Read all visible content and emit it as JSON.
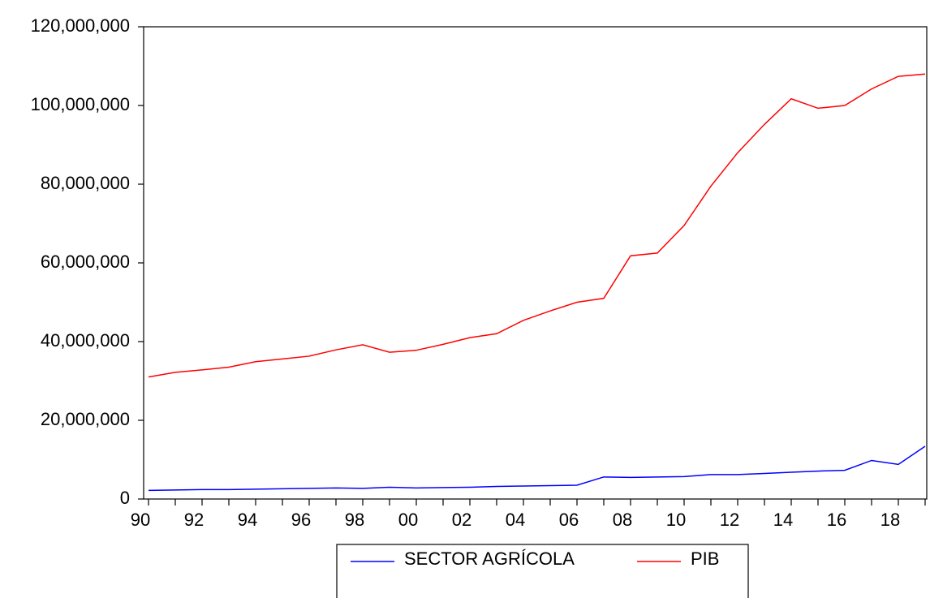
{
  "chart_data": {
    "type": "line",
    "categories": [
      "90",
      null,
      "92",
      null,
      "94",
      null,
      "96",
      null,
      "98",
      null,
      "00",
      null,
      "02",
      null,
      "04",
      null,
      "06",
      null,
      "08",
      null,
      "10",
      null,
      "12",
      null,
      "14",
      null,
      "16",
      null,
      "18",
      null
    ],
    "series": [
      {
        "name": "SECTOR AGRÍCOLA",
        "color": "#0000ff",
        "values": [
          2200000,
          2300000,
          2400000,
          2400000,
          2500000,
          2600000,
          2700000,
          2800000,
          2700000,
          3000000,
          2800000,
          2900000,
          3000000,
          3200000,
          3300000,
          3400000,
          3500000,
          5600000,
          5500000,
          5600000,
          5700000,
          6200000,
          6200000,
          6500000,
          6800000,
          7100000,
          7300000,
          9800000,
          8800000,
          13400000
        ]
      },
      {
        "name": "PIB",
        "color": "#ff0000",
        "values": [
          31000000,
          32200000,
          32800000,
          33500000,
          34900000,
          35600000,
          36300000,
          37900000,
          39200000,
          37300000,
          37800000,
          39300000,
          41000000,
          42000000,
          45400000,
          47800000,
          50000000,
          51000000,
          61800000,
          62500000,
          69500000,
          79500000,
          88000000,
          95200000,
          101700000,
          99300000,
          100000000,
          104200000,
          107400000,
          108000000
        ]
      }
    ],
    "ylim": [
      0,
      120000000
    ],
    "yticks": [
      0,
      {
        "value": 20000000,
        "label": "20,000,000"
      },
      {
        "value": 40000000,
        "label": "40,000,000"
      },
      {
        "value": 60000000,
        "label": "60,000,000"
      },
      {
        "value": 80000000,
        "label": "80,000,000"
      },
      {
        "value": 100000000,
        "label": "100,000,000"
      },
      {
        "value": 120000000,
        "label": "120,000,000"
      }
    ],
    "legend": "bottom"
  }
}
